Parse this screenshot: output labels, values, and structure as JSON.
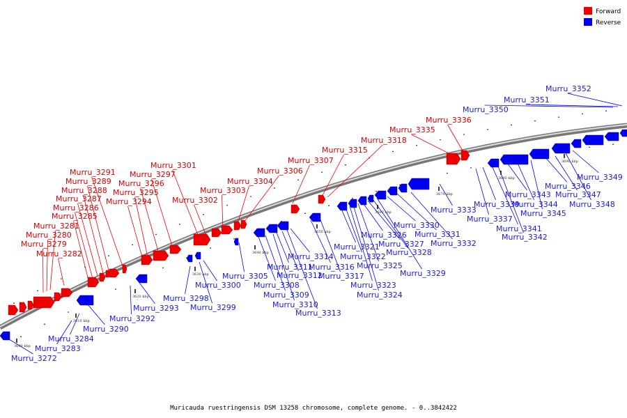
{
  "legend": {
    "forward_label": "Forward",
    "reverse_label": "Reverse",
    "forward_color": "#ee0000",
    "reverse_color": "#0000ee"
  },
  "caption": "Muricauda ruestringensis DSM 13258 chromosome, complete genome. - 0..3842422",
  "position_marks": [
    "3600 kbp",
    "3610 kbp",
    "3620 kbp",
    "3630 kbp",
    "3640 kbp",
    "3650 kbp",
    "3660 kbp",
    "3670 kbp",
    "3680 kbp",
    "3690 kbp"
  ],
  "genes_forward": [
    "Murru_3279",
    "Murru_3280",
    "Murru_3281",
    "Murru_3282",
    "Murru_3285",
    "Murru_3286",
    "Murru_3287",
    "Murru_3288",
    "Murru_3289",
    "Murru_3291",
    "Murru_3294",
    "Murru_3295",
    "Murru_3296",
    "Murru_3297",
    "Murru_3301",
    "Murru_3302",
    "Murru_3303",
    "Murru_3304",
    "Murru_3306",
    "Murru_3307",
    "Murru_3315",
    "Murru_3318",
    "Murru_3335",
    "Murru_3336"
  ],
  "genes_reverse": [
    "Murru_3272",
    "Murru_3283",
    "Murru_3284",
    "Murru_3290",
    "Murru_3292",
    "Murru_3293",
    "Murru_3298",
    "Murru_3299",
    "Murru_3300",
    "Murru_3305",
    "Murru_3308",
    "Murru_3309",
    "Murru_3310",
    "Murru_3311",
    "Murru_3312",
    "Murru_3313",
    "Murru_3314",
    "Murru_3316",
    "Murru_3317",
    "Murru_3321",
    "Murru_3322",
    "Murru_3323",
    "Murru_3324",
    "Murru_3325",
    "Murru_3326",
    "Murru_3327",
    "Murru_3328",
    "Murru_3329",
    "Murru_3330",
    "Murru_3331",
    "Murru_3332",
    "Murru_3333",
    "Murru_3337",
    "Murru_3339",
    "Murru_3341",
    "Murru_3342",
    "Murru_3343",
    "Murru_3344",
    "Murru_3345",
    "Murru_3346",
    "Murru_3347",
    "Murru_3348",
    "Murru_3349",
    "Murru_3350",
    "Murru_3351",
    "Murru_3352"
  ]
}
